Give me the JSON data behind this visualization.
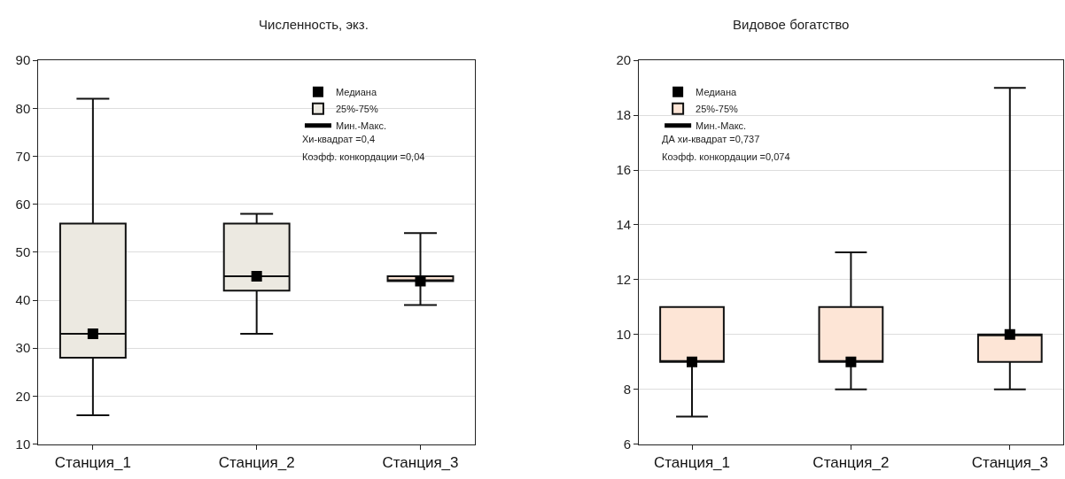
{
  "chart_data": [
    {
      "type": "box",
      "title": "Численность, экз.",
      "categories": [
        "Станция_1",
        "Станция_2",
        "Станция_3"
      ],
      "series": [
        {
          "name": "Медиана",
          "type": "scatter",
          "color": "#000000",
          "marker": "square",
          "x": [
            "Станция_1",
            "Станция_2",
            "Станция_3"
          ],
          "values": [
            33,
            45,
            44
          ]
        },
        {
          "name": "25%-75%",
          "type": "box",
          "colors": [
            "#ece9e1",
            "#ece9e1",
            "#fbe5d6"
          ],
          "boxes": [
            {
              "low": 16,
              "q1": 28,
              "median": 33,
              "q3": 56,
              "high": 82
            },
            {
              "low": 33,
              "q1": 42,
              "median": 45,
              "q3": 56,
              "high": 58
            },
            {
              "low": 39,
              "q1": 44,
              "median": 44,
              "q3": 45,
              "high": 54
            }
          ]
        }
      ],
      "ylim": [
        10,
        90
      ],
      "yticks": [
        10,
        20,
        30,
        40,
        50,
        60,
        70,
        80,
        90
      ],
      "grid": "y",
      "legend": "top right",
      "annotations": [
        "Мин.-Макс.",
        "Хи-квадрат =0,4",
        "Коэфф. конкордации =0,04"
      ]
    },
    {
      "type": "box",
      "title": "Видовое богатство",
      "categories": [
        "Станция_1",
        "Станция_2",
        "Станция_3"
      ],
      "series": [
        {
          "name": "Медиана",
          "type": "scatter",
          "color": "#000000",
          "marker": "square",
          "x": [
            "Станция_1",
            "Станция_2",
            "Станция_3"
          ],
          "values": [
            9,
            9,
            10
          ]
        },
        {
          "name": "25%-75%",
          "type": "box",
          "colors": [
            "#fde5d6",
            "#fde5d6",
            "#fde5d6"
          ],
          "boxes": [
            {
              "low": 7,
              "q1": 9,
              "median": 9,
              "q3": 11,
              "high": 11
            },
            {
              "low": 8,
              "q1": 9,
              "median": 9,
              "q3": 11,
              "high": 13
            },
            {
              "low": 8,
              "q1": 9,
              "median": 10,
              "q3": 10,
              "high": 19
            }
          ]
        }
      ],
      "ylim": [
        6,
        20
      ],
      "yticks": [
        6,
        8,
        10,
        12,
        14,
        16,
        18,
        20
      ],
      "grid": "y",
      "legend": "top left",
      "annotations": [
        "Мин.-Макс.",
        "ДА хи-квадрат =0,737",
        "Коэфф. конкордации =0,074"
      ]
    }
  ]
}
